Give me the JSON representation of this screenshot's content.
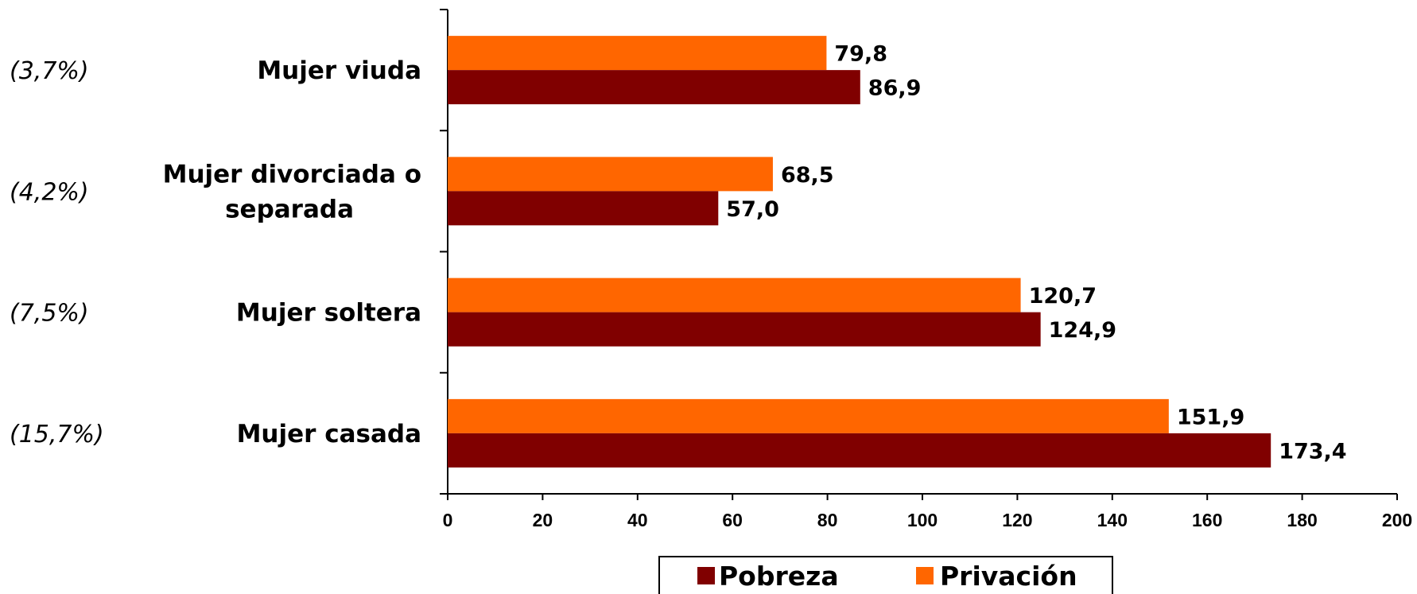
{
  "chart_data": {
    "type": "bar",
    "orientation": "horizontal",
    "categories": [
      "Mujer viuda",
      "Mujer divorciada o separada",
      "Mujer soltera",
      "Mujer casada"
    ],
    "category_lines": [
      [
        "Mujer viuda"
      ],
      [
        "Mujer divorciada o",
        "separada"
      ],
      [
        "Mujer soltera"
      ],
      [
        "Mujer casada"
      ]
    ],
    "shares": [
      "(3,7%)",
      "(4,2%)",
      "(7,5%)",
      "(15,7%)"
    ],
    "series": [
      {
        "name": "Privación",
        "color": "#FF6600",
        "values": [
          79.8,
          68.5,
          120.7,
          151.9
        ],
        "labels": [
          "79,8",
          "68,5",
          "120,7",
          "151,9"
        ]
      },
      {
        "name": "Pobreza",
        "color": "#800000",
        "values": [
          86.9,
          57.0,
          124.9,
          173.4
        ],
        "labels": [
          "86,9",
          "57,0",
          "124,9",
          "173,4"
        ]
      }
    ],
    "xlim": [
      0,
      200
    ],
    "xticks": [
      0,
      20,
      40,
      60,
      80,
      100,
      120,
      140,
      160,
      180,
      200
    ],
    "legend": {
      "placement": "bottom",
      "order": [
        "Pobreza",
        "Privación"
      ]
    },
    "grid": false
  }
}
